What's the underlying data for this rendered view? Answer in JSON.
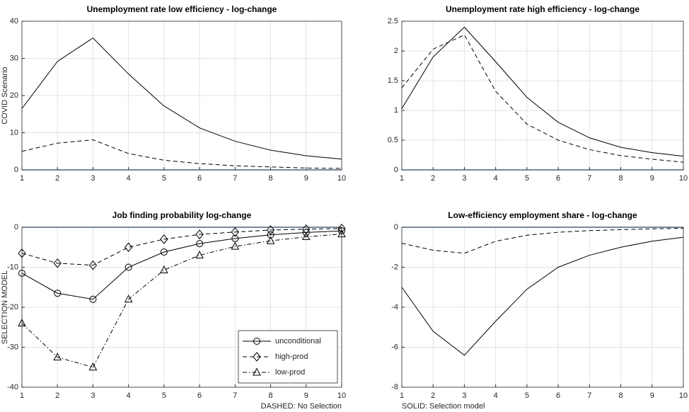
{
  "chart_data": [
    {
      "type": "line",
      "title": "Unemployment rate low efficiency  - log-change",
      "ylabel": "COVID Scenario",
      "x": [
        1,
        2,
        3,
        4,
        5,
        6,
        7,
        8,
        9,
        10
      ],
      "xlim": [
        1,
        10
      ],
      "xticks": [
        1,
        2,
        3,
        4,
        5,
        6,
        7,
        8,
        9,
        10
      ],
      "ylim": [
        0,
        40
      ],
      "yticks": [
        0,
        10,
        20,
        30,
        40
      ],
      "grid": true,
      "baseline_color": "#3a78b5",
      "series": [
        {
          "color": "#000000",
          "dash": "solid",
          "values": [
            16.5,
            29.2,
            35.5,
            25.8,
            17.2,
            11.3,
            7.7,
            5.3,
            3.8,
            2.9
          ]
        },
        {
          "color": "#000000",
          "dash": "dashed",
          "values": [
            5.0,
            7.2,
            8.1,
            4.4,
            2.6,
            1.7,
            1.1,
            0.8,
            0.5,
            0.4
          ]
        }
      ]
    },
    {
      "type": "line",
      "title": "Unemployment rate high efficiency  - log-change",
      "x": [
        1,
        2,
        3,
        4,
        5,
        6,
        7,
        8,
        9,
        10
      ],
      "xlim": [
        1,
        10
      ],
      "xticks": [
        1,
        2,
        3,
        4,
        5,
        6,
        7,
        8,
        9,
        10
      ],
      "ylim": [
        0,
        2.5
      ],
      "yticks": [
        0,
        0.5,
        1,
        1.5,
        2,
        2.5
      ],
      "grid": true,
      "baseline_color": "#3a78b5",
      "series": [
        {
          "color": "#000000",
          "dash": "solid",
          "values": [
            1.03,
            1.9,
            2.4,
            1.82,
            1.22,
            0.8,
            0.54,
            0.38,
            0.29,
            0.23
          ]
        },
        {
          "color": "#000000",
          "dash": "dashed",
          "values": [
            1.38,
            2.03,
            2.27,
            1.32,
            0.77,
            0.5,
            0.34,
            0.24,
            0.18,
            0.13
          ]
        }
      ]
    },
    {
      "type": "line",
      "title": "Job finding probability log-change",
      "ylabel": "SELECTION MODEL",
      "xlabel": "DASHED: No Selection",
      "x": [
        1,
        2,
        3,
        4,
        5,
        6,
        7,
        8,
        9,
        10
      ],
      "xlim": [
        1,
        10
      ],
      "xticks": [
        1,
        2,
        3,
        4,
        5,
        6,
        7,
        8,
        9,
        10
      ],
      "ylim": [
        -40,
        0
      ],
      "yticks": [
        -40,
        -30,
        -20,
        -10,
        0
      ],
      "grid": true,
      "baseline_color": "#3a78b5",
      "legend": "lower right",
      "series": [
        {
          "name": "unconditional",
          "color": "#000000",
          "dash": "solid",
          "marker": "circle",
          "values": [
            -11.5,
            -16.5,
            -18,
            -10,
            -6.2,
            -4.1,
            -2.8,
            -1.9,
            -1.3,
            -0.9
          ]
        },
        {
          "name": "high-prod",
          "color": "#000000",
          "dash": "dashed",
          "marker": "diamond",
          "values": [
            -6.5,
            -9,
            -9.5,
            -5,
            -3,
            -1.8,
            -1.2,
            -0.7,
            -0.5,
            -0.3
          ]
        },
        {
          "name": "low-prod",
          "color": "#000000",
          "dash": "dashdot",
          "marker": "triangle",
          "values": [
            -24,
            -32.5,
            -35,
            -18,
            -10.7,
            -7,
            -4.8,
            -3.4,
            -2.4,
            -1.7
          ]
        }
      ]
    },
    {
      "type": "line",
      "title": "Low-efficiency employment share - log-change",
      "xlabel": "SOLID: Selection model",
      "x": [
        1,
        2,
        3,
        4,
        5,
        6,
        7,
        8,
        9,
        10
      ],
      "xlim": [
        1,
        10
      ],
      "xticks": [
        1,
        2,
        3,
        4,
        5,
        6,
        7,
        8,
        9,
        10
      ],
      "ylim": [
        -8,
        0
      ],
      "yticks": [
        -8,
        -6,
        -4,
        -2,
        0
      ],
      "grid": true,
      "baseline_color": "#3a78b5",
      "series": [
        {
          "color": "#000000",
          "dash": "solid",
          "values": [
            -3,
            -5.2,
            -6.4,
            -4.7,
            -3.1,
            -2.0,
            -1.4,
            -1.0,
            -0.7,
            -0.5
          ]
        },
        {
          "color": "#000000",
          "dash": "dashed",
          "values": [
            -0.8,
            -1.15,
            -1.3,
            -0.7,
            -0.4,
            -0.25,
            -0.17,
            -0.12,
            -0.08,
            -0.05
          ]
        }
      ]
    }
  ]
}
